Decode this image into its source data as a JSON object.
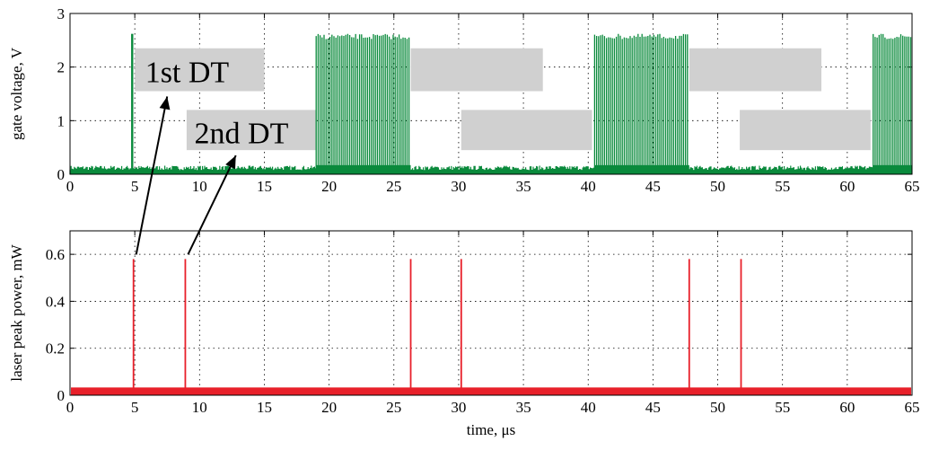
{
  "chart_data": [
    {
      "type": "line",
      "ylabel": "gate voltage, V",
      "xlim": [
        0,
        65
      ],
      "ylim": [
        0,
        3
      ],
      "xticks": [
        0,
        5,
        10,
        15,
        20,
        25,
        30,
        35,
        40,
        45,
        50,
        55,
        60,
        65
      ],
      "yticks": [
        0,
        1,
        2,
        3
      ],
      "grid": true,
      "series_color": "#0a8a3c",
      "baseline_v": 0.12,
      "spike_v": 2.62,
      "single_spikes_t": [
        4.8
      ],
      "bursts": [
        [
          19.0,
          26.3
        ],
        [
          40.5,
          47.8
        ],
        [
          62.0,
          65.0
        ]
      ],
      "dead_time_bands": [
        {
          "label": "1st DT",
          "t_start": 5.0,
          "t_end": 15.0,
          "v_low": 1.55,
          "v_high": 2.35
        },
        {
          "label": "2nd DT",
          "t_start": 9.0,
          "t_end": 19.0,
          "v_low": 0.45,
          "v_high": 1.2
        },
        {
          "label": "",
          "t_start": 26.3,
          "t_end": 36.5,
          "v_low": 1.55,
          "v_high": 2.35
        },
        {
          "label": "",
          "t_start": 30.2,
          "t_end": 40.3,
          "v_low": 0.45,
          "v_high": 1.2
        },
        {
          "label": "",
          "t_start": 47.8,
          "t_end": 58.0,
          "v_low": 1.55,
          "v_high": 2.35
        },
        {
          "label": "",
          "t_start": 51.7,
          "t_end": 61.8,
          "v_low": 0.45,
          "v_high": 1.2
        }
      ],
      "band_color": "#d0d0d0"
    },
    {
      "type": "line",
      "xlabel": "time, μs",
      "ylabel": "laser peak power, mW",
      "xlim": [
        0,
        65
      ],
      "ylim": [
        0,
        0.7
      ],
      "xticks": [
        0,
        5,
        10,
        15,
        20,
        25,
        30,
        35,
        40,
        45,
        50,
        55,
        60,
        65
      ],
      "yticks": [
        0,
        0.2,
        0.4,
        0.6
      ],
      "grid": true,
      "series_color": "#e8202a",
      "baseline_p": 0.015,
      "pulse_p": 0.58,
      "pulses_t": [
        4.9,
        8.9,
        26.3,
        30.2,
        47.8,
        51.8
      ]
    }
  ],
  "annotations": {
    "label_1st": "1st DT",
    "label_2nd": "2nd DT"
  }
}
